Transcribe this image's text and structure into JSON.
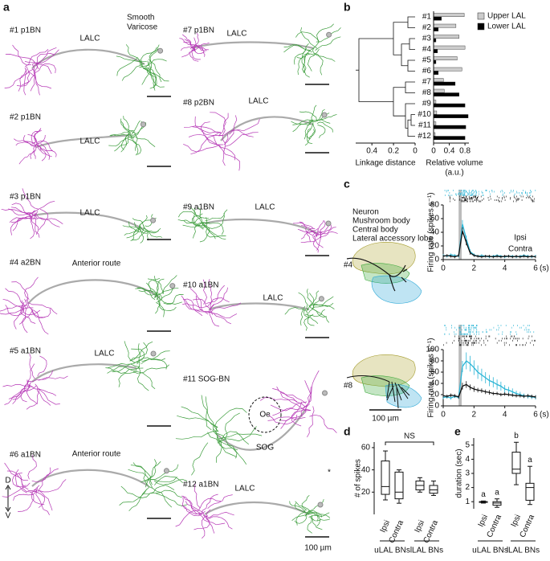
{
  "panel_labels": [
    "a",
    "b",
    "c",
    "d",
    "e"
  ],
  "panel_a": {
    "legend": [
      {
        "label": "Smooth",
        "color": "#3a9c3a"
      },
      {
        "label": "Varicose",
        "color": "#b535b5"
      }
    ],
    "neurons": [
      {
        "label": "#1 p1BN",
        "route": "LALC"
      },
      {
        "label": "#2 p1BN",
        "route": "LALC"
      },
      {
        "label": "#3 p1BN",
        "route": "LALC"
      },
      {
        "label": "#4 a2BN",
        "route": "Anterior route"
      },
      {
        "label": "#5 a1BN",
        "route": "LALC"
      },
      {
        "label": "#6 a1BN",
        "route": "Anterior route"
      },
      {
        "label": "#7 p1BN",
        "route": "LALC"
      },
      {
        "label": "#8 p2BN",
        "route": "LALC"
      },
      {
        "label": "#9 a1BN",
        "route": "LALC"
      },
      {
        "label": "#10 a1BN",
        "route": "LALC"
      },
      {
        "label": "#11 SOG-BN"
      },
      {
        "label": "#12 a1BN",
        "route": "LALC"
      }
    ],
    "landmarks": [
      "Oe",
      "SOG"
    ],
    "marker": "*",
    "orientation": [
      "D",
      "V"
    ],
    "scale_bar": "100 µm"
  },
  "panel_c": {
    "legend": [
      {
        "label": "Neuron",
        "color": "#111111"
      },
      {
        "label": "Mushroom body",
        "color": "#a39a2a"
      },
      {
        "label": "Central body",
        "color": "#3aa83a"
      },
      {
        "label": "Lateral accessory lobe",
        "color": "#2ba7d6"
      }
    ],
    "scale_bar": "100 µm"
  },
  "chart_data": [
    {
      "type": "bar",
      "orientation": "horizontal",
      "categories": [
        "#1",
        "#2",
        "#3",
        "#4",
        "#5",
        "#6",
        "#7",
        "#8",
        "#9",
        "#10",
        "#11",
        "#12"
      ],
      "series": [
        {
          "name": "Upper LAL",
          "color": "#cccccc",
          "values": [
            0.78,
            0.57,
            0.65,
            0.8,
            0.6,
            0.72,
            0.25,
            0.27,
            0.06,
            0.08,
            0.06,
            0.04
          ]
        },
        {
          "name": "Lower LAL",
          "color": "#000000",
          "values": [
            0.2,
            0.12,
            0.06,
            0.1,
            0.06,
            0.12,
            0.55,
            0.65,
            0.8,
            0.88,
            0.82,
            0.8
          ]
        }
      ],
      "xlim": [
        0,
        0.9
      ],
      "xticks": [
        0,
        0.4,
        0.8
      ],
      "xlabel": "Relative volume",
      "xunit": "(a.u.)",
      "linkage": {
        "label": "Linkage distance",
        "xlim": [
          0.55,
          0
        ],
        "xticks": [
          0.4,
          0.2,
          0
        ]
      }
    },
    {
      "type": "line",
      "label": "#4",
      "x": [
        0,
        0.25,
        0.5,
        0.75,
        1,
        1.25,
        1.5,
        1.75,
        2,
        2.25,
        2.5,
        2.75,
        3,
        3.25,
        3.5,
        3.75,
        4,
        4.25,
        4.5,
        4.75,
        5,
        5.25,
        5.5,
        5.75,
        6
      ],
      "series": [
        {
          "name": "Ipsi",
          "color": "#2bb5d6",
          "values": [
            6,
            5,
            7,
            6,
            5,
            52,
            30,
            12,
            7,
            5,
            6,
            5,
            4,
            5,
            6,
            5,
            4,
            5,
            5,
            4,
            5,
            6,
            5,
            4,
            5
          ],
          "errors": [
            2,
            2,
            2,
            2,
            2,
            6,
            5,
            3,
            2,
            2,
            2,
            2,
            2,
            2,
            2,
            2,
            2,
            2,
            2,
            2,
            2,
            2,
            2,
            2,
            2
          ]
        },
        {
          "name": "Contra",
          "color": "#111111",
          "values": [
            5,
            6,
            5,
            4,
            6,
            42,
            25,
            10,
            6,
            5,
            4,
            5,
            5,
            4,
            5,
            4,
            5,
            5,
            4,
            5,
            4,
            5,
            4,
            5,
            4
          ],
          "errors": [
            2,
            2,
            2,
            2,
            2,
            5,
            4,
            3,
            2,
            2,
            2,
            2,
            2,
            2,
            2,
            2,
            2,
            2,
            2,
            2,
            2,
            2,
            2,
            2,
            2
          ]
        }
      ],
      "stimulus": [
        1,
        1.2
      ],
      "xlim": [
        0,
        6
      ],
      "xticks": [
        0,
        2,
        4,
        6
      ],
      "xunit": "(s)",
      "ylabel": "Firing rate (spikes s⁻¹)",
      "ylim": [
        0,
        80
      ],
      "yticks": [
        0,
        20,
        40,
        60,
        80
      ]
    },
    {
      "type": "line",
      "label": "#8",
      "x": [
        0,
        0.25,
        0.5,
        0.75,
        1,
        1.25,
        1.5,
        1.75,
        2,
        2.25,
        2.5,
        2.75,
        3,
        3.25,
        3.5,
        3.75,
        4,
        4.25,
        4.5,
        4.75,
        5,
        5.25,
        5.5,
        5.75,
        6
      ],
      "series": [
        {
          "color": "#2bb5d6",
          "values": [
            15,
            16,
            14,
            17,
            15,
            70,
            80,
            75,
            68,
            60,
            55,
            50,
            45,
            42,
            38,
            35,
            30,
            28,
            25,
            22,
            20,
            18,
            17,
            16,
            15
          ],
          "errors": [
            3,
            3,
            3,
            3,
            3,
            10,
            15,
            14,
            13,
            12,
            11,
            10,
            10,
            9,
            9,
            8,
            7,
            6,
            6,
            5,
            5,
            4,
            4,
            4,
            4
          ]
        },
        {
          "color": "#111111",
          "values": [
            18,
            17,
            19,
            18,
            16,
            35,
            38,
            33,
            30,
            28,
            27,
            25,
            24,
            22,
            22,
            20,
            21,
            20,
            19,
            18,
            18,
            17,
            18,
            17,
            16
          ],
          "errors": [
            3,
            3,
            3,
            3,
            3,
            6,
            6,
            5,
            5,
            4,
            4,
            4,
            4,
            3,
            3,
            3,
            3,
            3,
            3,
            3,
            3,
            3,
            3,
            3,
            3
          ]
        }
      ],
      "stimulus": [
        1,
        1.2
      ],
      "xlim": [
        0,
        6
      ],
      "xticks": [
        0,
        2,
        4,
        6
      ],
      "xunit": "(s)",
      "ylabel": "Firing rate (spikes s⁻¹)",
      "ylim": [
        0,
        100
      ],
      "yticks": [
        0,
        20,
        40,
        60,
        80,
        100
      ]
    },
    {
      "type": "box",
      "categories": [
        "Ipsi",
        "Contra",
        "Ipsi",
        "Contra"
      ],
      "groups": [
        "uLAL BNs",
        "lLAL BNs"
      ],
      "boxes": [
        {
          "min": 13,
          "q1": 18,
          "median": 25,
          "q3": 48,
          "max": 57
        },
        {
          "min": 10,
          "q1": 14,
          "median": 20,
          "q3": 38,
          "max": 40
        },
        {
          "min": 20,
          "q1": 22,
          "median": 26,
          "q3": 30,
          "max": 33
        },
        {
          "min": 17,
          "q1": 19,
          "median": 22,
          "q3": 26,
          "max": 30
        }
      ],
      "ylabel": "# of spikes",
      "ylim": [
        0,
        65
      ],
      "yticks": [
        20,
        40,
        60
      ],
      "annotation": "NS"
    },
    {
      "type": "box",
      "categories": [
        "Ipsi",
        "Contra",
        "Ipsi",
        "Contra"
      ],
      "groups": [
        "uLAL BNs",
        "lLAL BNs"
      ],
      "boxes": [
        {
          "min": 0.9,
          "q1": 0.95,
          "median": 1.0,
          "q3": 1.0,
          "max": 1.05
        },
        {
          "min": 0.6,
          "q1": 0.75,
          "median": 0.9,
          "q3": 1.0,
          "max": 1.2
        },
        {
          "min": 2.2,
          "q1": 3.0,
          "median": 3.3,
          "q3": 4.5,
          "max": 5.2
        },
        {
          "min": 0.8,
          "q1": 1.1,
          "median": 2.0,
          "q3": 2.3,
          "max": 3.5
        }
      ],
      "ylabel": "duration (sec)",
      "ylim": [
        0.5,
        5.5
      ],
      "yticks": [
        1,
        2,
        3,
        4,
        5
      ],
      "annotations": [
        "a",
        "a",
        "b",
        "a"
      ]
    }
  ]
}
